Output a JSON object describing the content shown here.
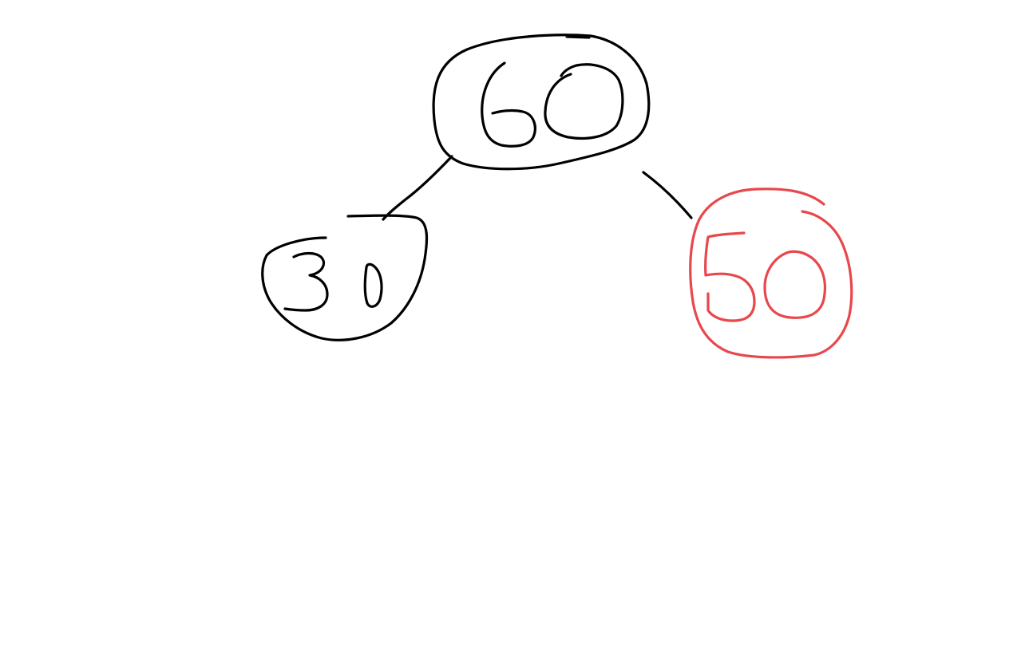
{
  "diagram": {
    "type": "binary-tree",
    "nodes": [
      {
        "id": "root",
        "label": "60",
        "color": "#000000"
      },
      {
        "id": "left",
        "label": "30",
        "color": "#000000"
      },
      {
        "id": "right",
        "label": "50",
        "color": "#e8474c"
      }
    ],
    "edges": [
      {
        "from": "60",
        "to": "30"
      },
      {
        "from": "60",
        "to": "50"
      }
    ]
  }
}
